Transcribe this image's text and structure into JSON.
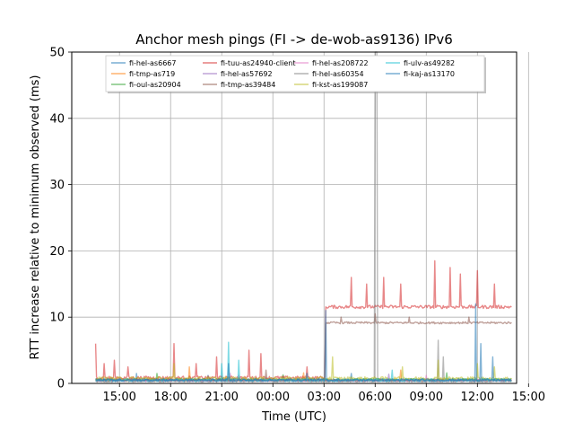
{
  "chart_data": {
    "type": "line",
    "title": "Anchor mesh pings (FI -> de-wob-as9136) IPv6",
    "xlabel": "Time (UTC)",
    "ylabel": "RTT increase relative to minimum observed (ms)",
    "ylim": [
      0,
      50
    ],
    "xlim_hours": [
      12.2,
      38.3
    ],
    "x_ticks": [
      {
        "label": "15:00",
        "h": 15
      },
      {
        "label": "18:00",
        "h": 18
      },
      {
        "label": "21:00",
        "h": 21
      },
      {
        "label": "00:00",
        "h": 24
      },
      {
        "label": "03:00",
        "h": 27
      },
      {
        "label": "06:00",
        "h": 30
      },
      {
        "label": "09:00",
        "h": 33
      },
      {
        "label": "12:00",
        "h": 36
      },
      {
        "label": "15:00",
        "h": 39
      }
    ],
    "y_ticks": [
      0,
      10,
      20,
      30,
      40,
      50
    ],
    "grid": true,
    "legend_position": "top-center",
    "series": [
      {
        "name": "fi-hel-as6667",
        "color": "#1f77b4",
        "base": 0.3,
        "noise": 0.35,
        "spikes": [
          [
            16.0,
            1.5
          ],
          [
            20.2,
            1.2
          ],
          [
            28.6,
            1.5
          ]
        ]
      },
      {
        "name": "fi-tmp-as719",
        "color": "#ff7f0e",
        "base": 0.3,
        "noise": 0.4,
        "spikes": [
          [
            19.1,
            2.5
          ],
          [
            25.8,
            1.6
          ],
          [
            31.5,
            2.0
          ]
        ]
      },
      {
        "name": "fi-oul-as20904",
        "color": "#2ca02c",
        "base": 0.35,
        "noise": 0.4,
        "spikes": [
          [
            17.2,
            1.5
          ],
          [
            24.6,
            1.3
          ],
          [
            34.2,
            1.6
          ]
        ]
      },
      {
        "name": "fi-tuu-as24940-client",
        "color": "#d62728",
        "base": 0.6,
        "base_after": 11.3,
        "step_at": 27.1,
        "noise": 0.5,
        "spikes": [
          [
            13.6,
            6.0
          ],
          [
            14.1,
            3.0
          ],
          [
            14.7,
            3.5
          ],
          [
            15.5,
            2.5
          ],
          [
            18.2,
            6.0
          ],
          [
            19.5,
            3.0
          ],
          [
            20.7,
            4.0
          ],
          [
            22.6,
            5.0
          ],
          [
            23.3,
            4.5
          ],
          [
            26.0,
            2.5
          ],
          [
            28.6,
            16.0
          ],
          [
            29.5,
            15.0
          ],
          [
            30.5,
            16.0
          ],
          [
            31.5,
            15.0
          ],
          [
            33.5,
            18.5
          ],
          [
            34.4,
            17.5
          ],
          [
            35.0,
            16.5
          ],
          [
            36.0,
            17.0
          ],
          [
            37.0,
            15.0
          ]
        ]
      },
      {
        "name": "fi-hel-as57692",
        "color": "#9467bd",
        "base": 0.3,
        "noise": 0.3,
        "spikes": [
          [
            22.0,
            1.2
          ],
          [
            30.8,
            1.4
          ]
        ]
      },
      {
        "name": "fi-tmp-as39484",
        "color": "#8c564b",
        "base": 0.4,
        "base_after": 9.0,
        "step_at": 27.1,
        "noise": 0.3,
        "spikes": [
          [
            23.6,
            2.0
          ],
          [
            28.0,
            10.0
          ],
          [
            30.0,
            10.5
          ],
          [
            32.0,
            10.0
          ],
          [
            34.5,
            4.0
          ],
          [
            35.5,
            10.0
          ]
        ]
      },
      {
        "name": "fi-hel-as208722",
        "color": "#e377c2",
        "base": 0.3,
        "noise": 0.3,
        "spikes": [
          [
            21.5,
            1.5
          ],
          [
            33.0,
            1.2
          ]
        ]
      },
      {
        "name": "fi-hel-as60354",
        "color": "#7f7f7f",
        "base": 0.2,
        "noise": 0.3,
        "spikes": [
          [
            30.0,
            50.0
          ],
          [
            30.08,
            50.0
          ],
          [
            33.7,
            6.5
          ],
          [
            34.0,
            4.0
          ]
        ]
      },
      {
        "name": "fi-kst-as199087",
        "color": "#bcbd22",
        "base": 0.5,
        "noise": 0.5,
        "spikes": [
          [
            18.2,
            3.0
          ],
          [
            27.5,
            4.0
          ],
          [
            31.6,
            2.5
          ],
          [
            33.7,
            3.5
          ],
          [
            36.0,
            3.0
          ],
          [
            37.0,
            2.5
          ]
        ]
      },
      {
        "name": "fi-ulv-as49282",
        "color": "#17becf",
        "base": 0.3,
        "noise": 0.4,
        "spikes": [
          [
            21.0,
            3.0
          ],
          [
            21.4,
            6.2
          ],
          [
            22.0,
            3.5
          ],
          [
            31.0,
            2.0
          ]
        ]
      },
      {
        "name": "fi-kaj-as13170",
        "color": "#1f77b4",
        "base": 0.3,
        "noise": 0.4,
        "spikes": [
          [
            21.4,
            3.0
          ],
          [
            26.0,
            1.5
          ],
          [
            27.1,
            11.0
          ],
          [
            35.9,
            12.0
          ],
          [
            36.2,
            6.0
          ],
          [
            36.9,
            4.0
          ]
        ]
      }
    ]
  }
}
